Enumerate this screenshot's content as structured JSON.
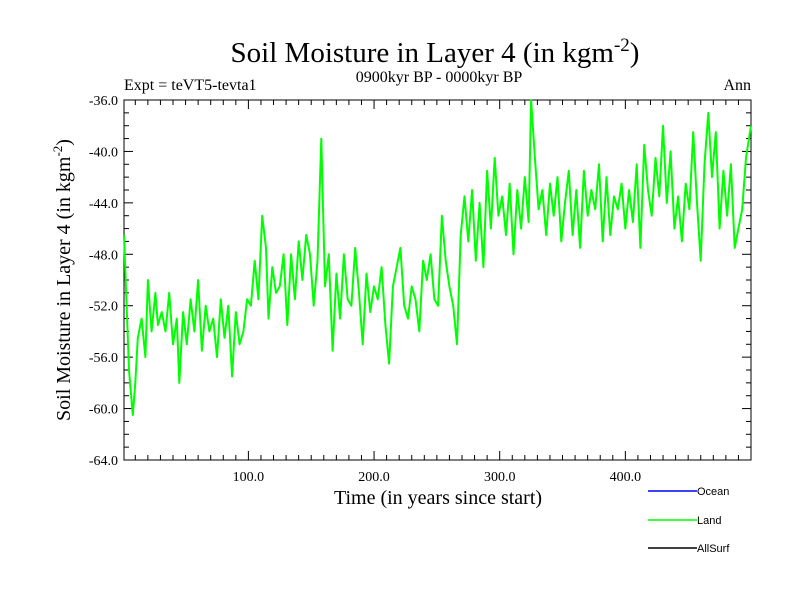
{
  "chart_data": {
    "type": "line",
    "title": "Soil Moisture in Layer 4 (in kgm",
    "title_superscript": "-2",
    "title_close": ")",
    "subtitle_left": "Expt = teVT5-tevta1",
    "subtitle_center": "0900kyr BP - 0000kyr BP",
    "subtitle_right": "Ann",
    "xlabel": "Time (in years since start)",
    "ylabel": "Soil Moisture in Layer 4 (in kgm",
    "ylabel_superscript": "-2",
    "ylabel_close": ")",
    "xlim": [
      1,
      500
    ],
    "ylim": [
      -64.0,
      -36.0
    ],
    "x_ticks": [
      100.0,
      200.0,
      300.0,
      400.0
    ],
    "x_tick_labels": [
      "100.0",
      "200.0",
      "300.0",
      "400.0"
    ],
    "y_ticks": [
      -64.0,
      -60.0,
      -56.0,
      -52.0,
      -48.0,
      -44.0,
      -40.0,
      -36.0
    ],
    "y_tick_labels": [
      "-64.0",
      "-60.0",
      "-56.0",
      "-52.0",
      "-48.0",
      "-44.0",
      "-40.0",
      "-36.0"
    ],
    "series": [
      {
        "name": "Ocean",
        "color": "#0000ff",
        "x": [],
        "values": []
      },
      {
        "name": "Land",
        "color": "#00ff00",
        "x": [
          1,
          5,
          8,
          10,
          12,
          15,
          18,
          20,
          23,
          26,
          28,
          31,
          34,
          37,
          40,
          43,
          45,
          48,
          51,
          54,
          57,
          60,
          63,
          66,
          69,
          72,
          75,
          78,
          81,
          84,
          87,
          90,
          93,
          96,
          99,
          102,
          105,
          108,
          111,
          114,
          116,
          119,
          122,
          125,
          128,
          131,
          134,
          137,
          140,
          143,
          146,
          149,
          152,
          155,
          158,
          161,
          164,
          167,
          170,
          173,
          176,
          179,
          182,
          185,
          188,
          191,
          194,
          197,
          200,
          203,
          206,
          209,
          212,
          215,
          218,
          221,
          224,
          227,
          230,
          233,
          236,
          239,
          242,
          245,
          248,
          251,
          254,
          257,
          260,
          263,
          266,
          269,
          272,
          275,
          278,
          281,
          284,
          287,
          290,
          293,
          296,
          299,
          302,
          305,
          308,
          311,
          314,
          317,
          320,
          323,
          325,
          328,
          331,
          334,
          337,
          340,
          343,
          346,
          349,
          352,
          355,
          358,
          361,
          364,
          367,
          370,
          373,
          376,
          379,
          382,
          385,
          388,
          391,
          394,
          397,
          400,
          403,
          406,
          409,
          412,
          415,
          418,
          421,
          424,
          427,
          430,
          433,
          436,
          439,
          442,
          445,
          448,
          451,
          454,
          457,
          460,
          463,
          466,
          469,
          472,
          475,
          478,
          481,
          484,
          487,
          490,
          493,
          496,
          500
        ],
        "values": [
          -46.5,
          -57.0,
          -60.5,
          -58.0,
          -54.5,
          -53.0,
          -56.0,
          -50.0,
          -54.0,
          -51.0,
          -53.5,
          -52.5,
          -54.0,
          -51.0,
          -55.0,
          -53.0,
          -58.0,
          -52.5,
          -55.0,
          -51.5,
          -54.0,
          -50.0,
          -55.5,
          -52.0,
          -54.0,
          -53.0,
          -56.0,
          -51.5,
          -54.5,
          -52.0,
          -57.5,
          -52.5,
          -55.0,
          -54.0,
          -51.5,
          -52.0,
          -48.5,
          -51.5,
          -45.0,
          -47.5,
          -53.0,
          -49.0,
          -51.0,
          -50.5,
          -48.0,
          -53.5,
          -48.0,
          -51.5,
          -47.0,
          -50.0,
          -46.5,
          -48.0,
          -52.0,
          -48.5,
          -39.0,
          -50.5,
          -48.0,
          -55.5,
          -49.5,
          -53.0,
          -48.0,
          -51.5,
          -52.0,
          -47.5,
          -51.0,
          -55.0,
          -49.5,
          -52.5,
          -50.5,
          -51.5,
          -49.0,
          -53.5,
          -56.5,
          -50.5,
          -49.0,
          -47.5,
          -52.0,
          -53.0,
          -50.5,
          -51.5,
          -54.0,
          -48.5,
          -50.0,
          -48.0,
          -51.5,
          -52.0,
          -45.0,
          -48.5,
          -50.5,
          -52.0,
          -55.0,
          -46.5,
          -43.5,
          -47.0,
          -43.0,
          -48.5,
          -44.0,
          -49.0,
          -41.5,
          -46.0,
          -40.5,
          -45.0,
          -43.5,
          -46.5,
          -42.5,
          -48.0,
          -43.0,
          -46.0,
          -42.0,
          -45.5,
          -36.0,
          -40.5,
          -44.5,
          -43.0,
          -46.5,
          -42.5,
          -45.0,
          -42.0,
          -47.0,
          -44.0,
          -41.5,
          -46.5,
          -43.0,
          -47.5,
          -41.5,
          -45.0,
          -43.0,
          -44.5,
          -41.0,
          -47.0,
          -42.0,
          -46.5,
          -43.5,
          -44.5,
          -42.5,
          -46.0,
          -43.0,
          -45.5,
          -41.0,
          -47.5,
          -39.5,
          -43.0,
          -45.0,
          -40.5,
          -43.5,
          -38.0,
          -44.0,
          -40.0,
          -46.0,
          -43.5,
          -47.0,
          -42.5,
          -44.5,
          -38.5,
          -44.0,
          -48.5,
          -41.0,
          -37.0,
          -42.0,
          -38.5,
          -46.0,
          -41.5,
          -45.0,
          -41.0,
          -47.5,
          -46.0,
          -44.5,
          -40.5,
          -38.0
        ]
      },
      {
        "name": "AllSurf",
        "color": "#000000",
        "x": [],
        "values": []
      }
    ]
  }
}
